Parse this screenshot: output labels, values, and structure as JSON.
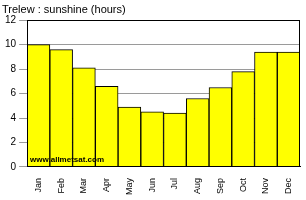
{
  "chart_data": {
    "type": "bar",
    "title": "Trelew : sunshine (hours)",
    "categories": [
      "Jan",
      "Feb",
      "Mar",
      "Apr",
      "May",
      "Jun",
      "Jul",
      "Aug",
      "Sep",
      "Oct",
      "Nov",
      "Dec"
    ],
    "values": [
      10.0,
      9.6,
      8.1,
      6.6,
      4.9,
      4.5,
      4.4,
      5.6,
      6.5,
      7.8,
      9.4,
      9.4
    ],
    "color": "#ffff00",
    "ylim": [
      0,
      12
    ],
    "yticks": [
      0,
      2,
      4,
      6,
      8,
      10,
      12
    ],
    "grid": true,
    "annotation": "www.allmetsat.com"
  }
}
